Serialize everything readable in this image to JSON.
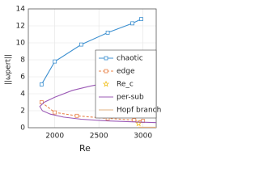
{
  "chart_data": {
    "type": "line",
    "xlabel": "Re",
    "ylabel": "||ωpert||",
    "xlim": [
      1700,
      3150
    ],
    "xticks": [
      2000,
      2500,
      3000
    ],
    "ylim": [
      0,
      14
    ],
    "yticks": [
      0,
      2,
      4,
      6,
      8,
      10,
      12,
      14
    ],
    "grid": true,
    "legend": "right",
    "series": [
      {
        "name": "chaotic",
        "color": "#3b8fd0",
        "marker": "square",
        "dash": false,
        "x": [
          1850,
          2000,
          2300,
          2600,
          2880,
          2980
        ],
        "values": [
          5.1,
          7.8,
          9.8,
          11.2,
          12.3,
          12.8
        ]
      },
      {
        "name": "edge",
        "color": "#e8834a",
        "marker": "square",
        "dash": true,
        "x": [
          1850,
          2000,
          2250,
          2600,
          2900,
          3000
        ],
        "values": [
          3.0,
          1.8,
          1.4,
          1.1,
          0.9,
          0.8
        ]
      },
      {
        "name": "Re_c",
        "color": "#f0c020",
        "marker": "star",
        "dash": false,
        "noline": true,
        "x": [
          2950
        ],
        "values": [
          0.5
        ]
      },
      {
        "name": "per-sub",
        "color": "#9b59b6",
        "marker": "none",
        "dash": false,
        "x": [
          2650,
          2400,
          2200,
          2000,
          1880,
          1830,
          1860,
          1950,
          2100,
          2300,
          2600,
          3000,
          3150
        ],
        "values": [
          5.4,
          4.9,
          4.4,
          3.6,
          3.0,
          2.5,
          2.0,
          1.6,
          1.25,
          1.0,
          0.8,
          0.65,
          0.6
        ]
      },
      {
        "name": "Hopf branch",
        "color": "#e0b080",
        "marker": "none",
        "dash": false,
        "x": [
          2950,
          3150
        ],
        "values": [
          0.05,
          0.05
        ]
      }
    ]
  }
}
